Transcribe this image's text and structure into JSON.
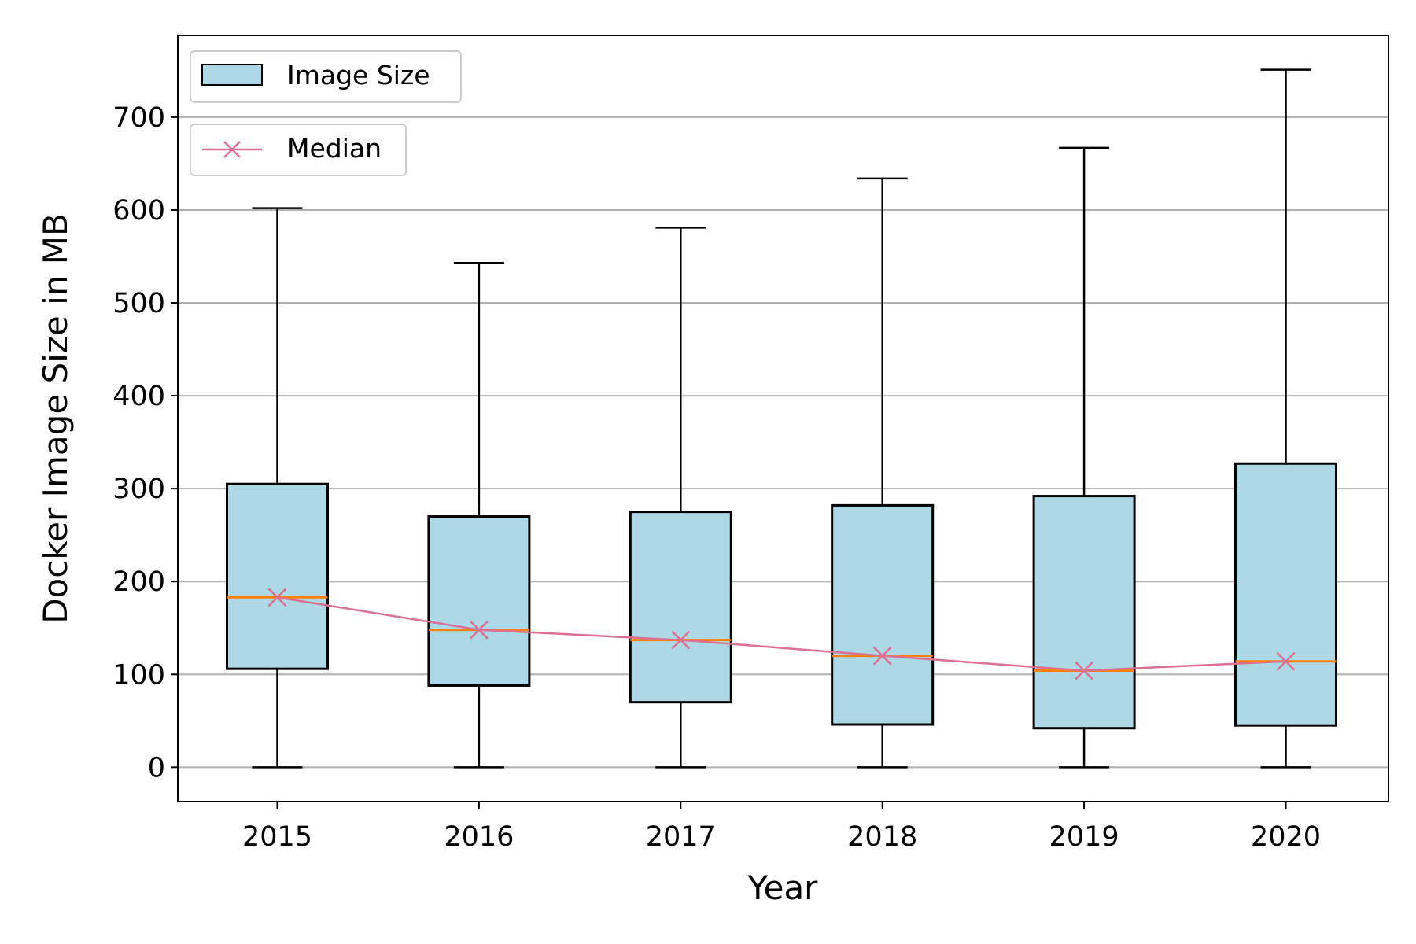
{
  "chart_data": {
    "type": "box",
    "xlabel": "Year",
    "ylabel": "Docker Image Size in MB",
    "ylim": [
      -37,
      788
    ],
    "yticks": [
      0,
      100,
      200,
      300,
      400,
      500,
      600,
      700
    ],
    "grid": "horizontal",
    "categories": [
      "2015",
      "2016",
      "2017",
      "2018",
      "2019",
      "2020"
    ],
    "boxes": [
      {
        "year": "2015",
        "whisker_low": 0,
        "q1": 106,
        "median": 183,
        "q3": 305,
        "whisker_high": 602
      },
      {
        "year": "2016",
        "whisker_low": 0,
        "q1": 88,
        "median": 148,
        "q3": 270,
        "whisker_high": 543
      },
      {
        "year": "2017",
        "whisker_low": 0,
        "q1": 70,
        "median": 137,
        "q3": 275,
        "whisker_high": 581
      },
      {
        "year": "2018",
        "whisker_low": 0,
        "q1": 46,
        "median": 120,
        "q3": 282,
        "whisker_high": 634
      },
      {
        "year": "2019",
        "whisker_low": 0,
        "q1": 42,
        "median": 104,
        "q3": 292,
        "whisker_high": 667
      },
      {
        "year": "2020",
        "whisker_low": 0,
        "q1": 45,
        "median": 114,
        "q3": 327,
        "whisker_high": 751
      }
    ],
    "median_line": [
      183,
      148,
      137,
      120,
      104,
      114
    ],
    "legend": [
      {
        "label": "Image Size",
        "kind": "box"
      },
      {
        "label": "Median",
        "kind": "line-marker"
      }
    ],
    "legend_position": "top-left",
    "colors": {
      "box_fill": "#add8e6",
      "box_edge": "#000000",
      "median_mark": "#ff7f0e",
      "median_line": "#db7093",
      "grid": "#b0b0b0"
    }
  }
}
